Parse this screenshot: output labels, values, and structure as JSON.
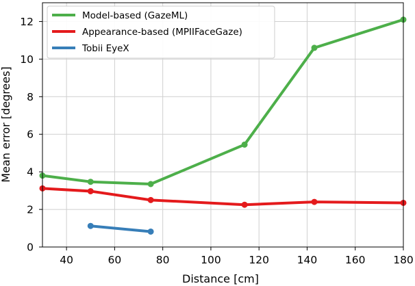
{
  "chart_data": {
    "type": "line",
    "xlabel": "Distance [cm]",
    "ylabel": "Mean error [degrees]",
    "xlim": [
      30,
      180
    ],
    "ylim": [
      0,
      13
    ],
    "xticks": [
      40,
      60,
      80,
      100,
      120,
      140,
      160,
      180
    ],
    "yticks": [
      0,
      2,
      4,
      6,
      8,
      10,
      12
    ],
    "grid": true,
    "legend_position": "top-left",
    "series": [
      {
        "name": "Model-based (GazeML)",
        "color": "#4daf4a",
        "x": [
          30,
          50,
          75,
          114,
          143,
          180
        ],
        "y": [
          3.8,
          3.47,
          3.35,
          5.45,
          10.6,
          12.1
        ]
      },
      {
        "name": "Appearance-based (MPIIFaceGaze)",
        "color": "#e41a1c",
        "x": [
          30,
          50,
          75,
          114,
          143,
          180
        ],
        "y": [
          3.12,
          2.97,
          2.5,
          2.25,
          2.4,
          2.35
        ]
      },
      {
        "name": "Tobii EyeX",
        "color": "#377eb8",
        "x": [
          50,
          75
        ],
        "y": [
          1.12,
          0.82
        ]
      }
    ]
  }
}
